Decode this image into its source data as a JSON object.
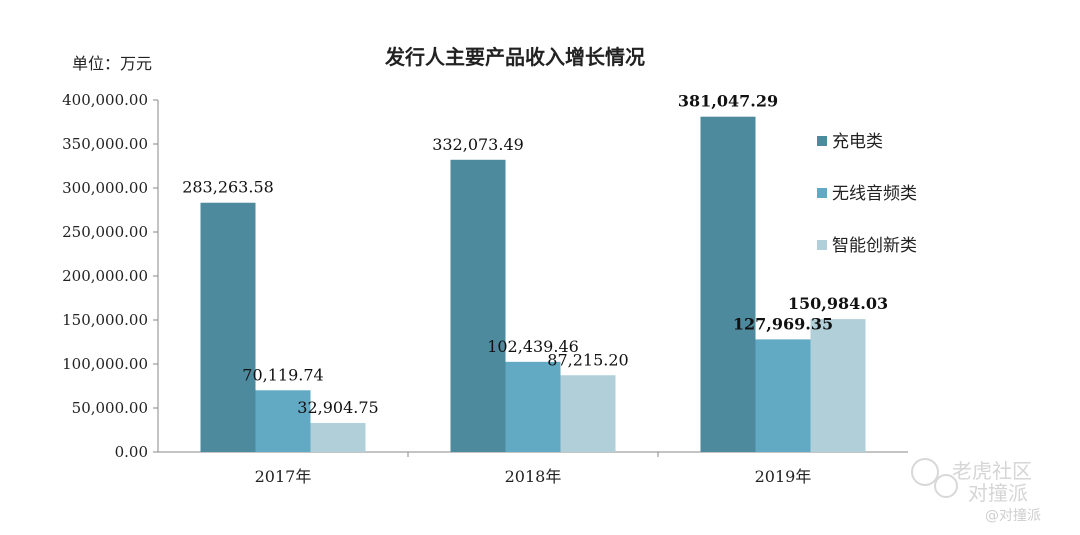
{
  "chart_data": {
    "type": "bar",
    "title": "发行人主要产品收入增长情况",
    "unit_label": "单位：万元",
    "categories": [
      "2017年",
      "2018年",
      "2019年"
    ],
    "ylim": [
      0,
      400000
    ],
    "yticks": [
      "0.00",
      "50,000.00",
      "100,000.00",
      "150,000.00",
      "200,000.00",
      "250,000.00",
      "300,000.00",
      "350,000.00",
      "400,000.00"
    ],
    "grid": false,
    "legend_position": "right",
    "series": [
      {
        "name": "充电类",
        "color": "#4e8a9e",
        "values": [
          283263.58,
          332073.49,
          381047.29
        ],
        "labels": [
          "283,263.58",
          "332,073.49",
          "381,047.29"
        ]
      },
      {
        "name": "无线音频类",
        "color": "#62a9c4",
        "values": [
          70119.74,
          102439.46,
          127969.35
        ],
        "labels": [
          "70,119.74",
          "102,439.46",
          "127,969.35"
        ]
      },
      {
        "name": "智能创新类",
        "color": "#b0cfd8",
        "values": [
          32904.75,
          87215.2,
          150984.03
        ],
        "labels": [
          "32,904.75",
          "87,215.20",
          "150,984.03"
        ]
      }
    ]
  },
  "watermark": {
    "main": "老虎社区",
    "sub": "对撞派",
    "handle": "@对撞派"
  }
}
